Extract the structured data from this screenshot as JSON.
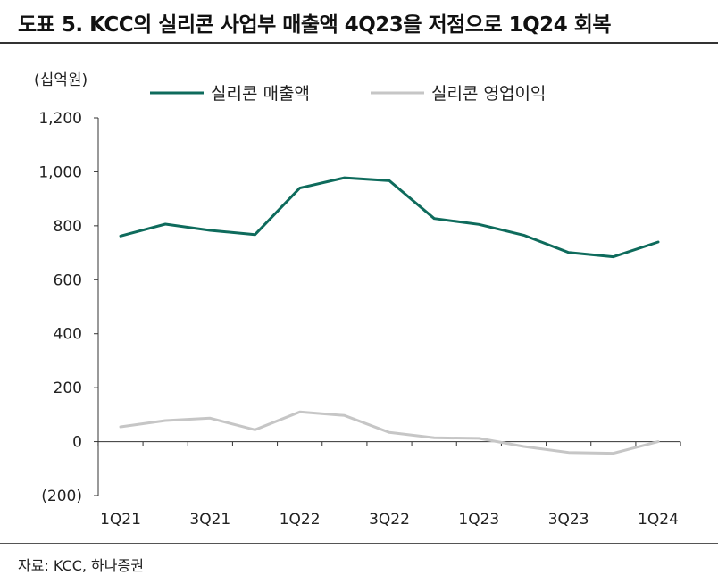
{
  "title": "도표 5. KCC의 실리콘 사업부 매출액 4Q23을 저점으로 1Q24 회복",
  "source": "자료: KCC, 하나증권",
  "chart_data": {
    "type": "line",
    "unit_label": "(십억원)",
    "x": [
      "1Q21",
      "2Q21",
      "3Q21",
      "4Q21",
      "1Q22",
      "2Q22",
      "3Q22",
      "4Q22",
      "1Q23",
      "2Q23",
      "3Q23",
      "4Q23",
      "1Q24"
    ],
    "x_tick_labels": [
      "1Q21",
      "",
      "3Q21",
      "",
      "1Q22",
      "",
      "3Q22",
      "",
      "1Q23",
      "",
      "3Q23",
      "",
      "1Q24"
    ],
    "ylim": [
      -200,
      1200
    ],
    "y_ticks": [
      -200,
      0,
      200,
      400,
      600,
      800,
      1000,
      1200
    ],
    "y_tick_labels": [
      "(200)",
      "0",
      "200",
      "400",
      "600",
      "800",
      "1,000",
      "1,200"
    ],
    "legend_position": "top",
    "series": [
      {
        "name": "실리콘 매출액",
        "color": "#0e6b5c",
        "values": [
          762,
          806,
          783,
          767,
          940,
          978,
          967,
          827,
          805,
          765,
          701,
          685,
          740
        ]
      },
      {
        "name": "실리콘 영업이익",
        "color": "#c6c6c6",
        "values": [
          55,
          78,
          87,
          44,
          110,
          97,
          34,
          14,
          12,
          -18,
          -40,
          -43,
          0
        ]
      }
    ]
  }
}
